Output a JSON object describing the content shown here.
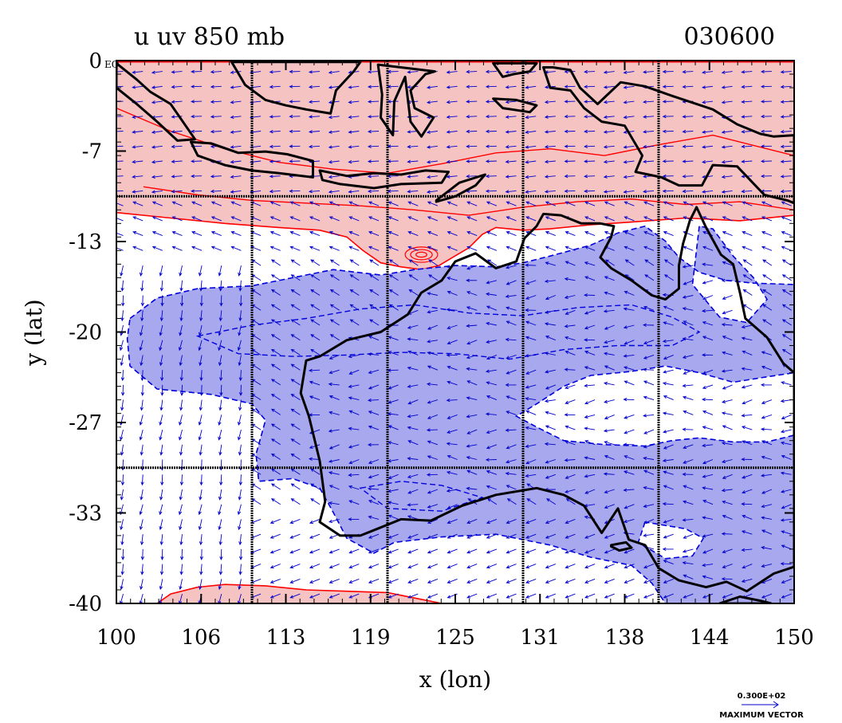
{
  "header": {
    "title_left": "u uv 850 mb",
    "title_right": "030600"
  },
  "chart_data": {
    "type": "contour_vector_map",
    "xlabel": "x (lon)",
    "ylabel": "y (lat)",
    "xlim": [
      100,
      150
    ],
    "ylim": [
      -40,
      0
    ],
    "x_ticks": [
      "100",
      "106",
      "113",
      "119",
      "125",
      "131",
      "138",
      "144",
      "150"
    ],
    "y_ticks": [
      "0",
      "-7",
      "-13",
      "-20",
      "-27",
      "-33",
      "-40"
    ],
    "y_tick_values": [
      0,
      -7,
      -13,
      -20,
      -27,
      -33,
      -40
    ],
    "x_tick_values": [
      100,
      106,
      113,
      119,
      125,
      131,
      138,
      144,
      150
    ],
    "y_top_suffix": "EQ",
    "grid_lon": [
      110,
      120,
      130,
      140
    ],
    "grid_lat": [
      -10,
      -30
    ],
    "grid": true,
    "positive_fill_color": "#f6c3c3",
    "positive_line_color": "#ff0000",
    "negative_fill_color": "#a8a8ee",
    "negative_line_color": "#0000dd",
    "coast_color": "#000000",
    "vector_color": "#0000cc",
    "positive_regions": [
      {
        "name": "north",
        "points": [
          [
            100,
            -0.1
          ],
          [
            150,
            -0.1
          ],
          [
            150,
            -11.4
          ],
          [
            146,
            -11.8
          ],
          [
            142,
            -11.6
          ],
          [
            138,
            -11.9
          ],
          [
            135,
            -12.1
          ],
          [
            132,
            -12.4
          ],
          [
            130,
            -12.5
          ],
          [
            128,
            -12.3
          ],
          [
            127,
            -12.8
          ],
          [
            126,
            -13.8
          ],
          [
            124.8,
            -14.5
          ],
          [
            123.8,
            -15.1
          ],
          [
            122.5,
            -15.4
          ],
          [
            121,
            -15.2
          ],
          [
            119.5,
            -14.9
          ],
          [
            118.2,
            -14.0
          ],
          [
            117,
            -13.0
          ],
          [
            115,
            -12.5
          ],
          [
            112,
            -12.3
          ],
          [
            108,
            -12.0
          ],
          [
            104,
            -11.6
          ],
          [
            100,
            -11.2
          ]
        ]
      },
      {
        "name": "south",
        "points": [
          [
            103,
            -40
          ],
          [
            104,
            -39.3
          ],
          [
            106,
            -38.8
          ],
          [
            108,
            -38.6
          ],
          [
            111,
            -38.7
          ],
          [
            114,
            -39.0
          ],
          [
            117,
            -39.1
          ],
          [
            120,
            -39.2
          ],
          [
            122,
            -39.6
          ],
          [
            124,
            -40
          ]
        ]
      }
    ],
    "negative_regions": [
      {
        "name": "main",
        "points": [
          [
            101,
            -19
          ],
          [
            103,
            -17.5
          ],
          [
            106,
            -16.8
          ],
          [
            110,
            -16.6
          ],
          [
            113,
            -16.0
          ],
          [
            116,
            -15.4
          ],
          [
            119.5,
            -15.8
          ],
          [
            122,
            -15.4
          ],
          [
            125,
            -15.1
          ],
          [
            128,
            -15.2
          ],
          [
            130,
            -14.9
          ],
          [
            132,
            -14.4
          ],
          [
            135,
            -13.6
          ],
          [
            137,
            -12.7
          ],
          [
            139,
            -12.2
          ],
          [
            140.5,
            -13.3
          ],
          [
            141.5,
            -14.5
          ],
          [
            143,
            -15.6
          ],
          [
            145,
            -16.2
          ],
          [
            147,
            -16.4
          ],
          [
            150,
            -16.5
          ],
          [
            150,
            -23.0
          ],
          [
            148,
            -23.3
          ],
          [
            145.5,
            -23.7
          ],
          [
            143,
            -23.0
          ],
          [
            140.5,
            -22.5
          ],
          [
            138,
            -22.9
          ],
          [
            135,
            -23.2
          ],
          [
            133,
            -24.0
          ],
          [
            131,
            -25.3
          ],
          [
            129.5,
            -26.2
          ],
          [
            131,
            -27.0
          ],
          [
            133,
            -28.0
          ],
          [
            136,
            -28.3
          ],
          [
            139,
            -28.4
          ],
          [
            141,
            -28.0
          ],
          [
            143,
            -27.8
          ],
          [
            145.5,
            -28.1
          ],
          [
            148,
            -28.1
          ],
          [
            150,
            -27.6
          ],
          [
            150,
            -40
          ],
          [
            140.5,
            -40
          ],
          [
            139.5,
            -38.5
          ],
          [
            138,
            -37.2
          ],
          [
            135,
            -36.6
          ],
          [
            132,
            -35.7
          ],
          [
            128,
            -34.9
          ],
          [
            124,
            -35.1
          ],
          [
            120.5,
            -35.5
          ],
          [
            119,
            -36.3
          ],
          [
            117,
            -35.2
          ],
          [
            116,
            -33.3
          ],
          [
            115,
            -31.5
          ],
          [
            113,
            -30.8
          ],
          [
            110.5,
            -31.0
          ],
          [
            110.3,
            -29.0
          ],
          [
            111,
            -26.5
          ],
          [
            110,
            -25.3
          ],
          [
            107,
            -24.6
          ],
          [
            103,
            -24.2
          ],
          [
            101,
            -22.5
          ],
          [
            100.8,
            -20.5
          ]
        ]
      }
    ],
    "negative_holes": [
      {
        "name": "east",
        "points": [
          [
            143,
            -12.2
          ],
          [
            142.5,
            -16.5
          ],
          [
            144.5,
            -18.9
          ],
          [
            146.5,
            -19.3
          ],
          [
            148,
            -17.6
          ],
          [
            147,
            -16.0
          ],
          [
            145.5,
            -14.4
          ],
          [
            144,
            -12.4
          ]
        ]
      },
      {
        "name": "south-central",
        "points": [
          [
            139,
            -34.0
          ],
          [
            138.5,
            -35.5
          ],
          [
            140.5,
            -36.7
          ],
          [
            142.5,
            -36.5
          ],
          [
            143.3,
            -35.2
          ],
          [
            142,
            -34.5
          ]
        ]
      }
    ],
    "coastlines": [
      {
        "name": "australia",
        "points": [
          [
            129.5,
            -14.8
          ],
          [
            128,
            -15.3
          ],
          [
            126.5,
            -14.2
          ],
          [
            125,
            -14.8
          ],
          [
            124,
            -16.2
          ],
          [
            122.5,
            -17.1
          ],
          [
            121.5,
            -18.7
          ],
          [
            119.5,
            -20.0
          ],
          [
            117,
            -20.6
          ],
          [
            115,
            -21.8
          ],
          [
            114,
            -22.1
          ],
          [
            113.6,
            -24.5
          ],
          [
            114.2,
            -26.2
          ],
          [
            115,
            -29.5
          ],
          [
            115.4,
            -32.5
          ],
          [
            115,
            -34.0
          ],
          [
            116.5,
            -35.0
          ],
          [
            118,
            -35.0
          ],
          [
            119.5,
            -34.4
          ],
          [
            121,
            -33.8
          ],
          [
            123.2,
            -33.9
          ],
          [
            125.5,
            -32.8
          ],
          [
            128,
            -32.0
          ],
          [
            131,
            -31.5
          ],
          [
            133,
            -32.0
          ],
          [
            134.5,
            -32.8
          ],
          [
            135.8,
            -34.8
          ],
          [
            137,
            -33.0
          ],
          [
            137.8,
            -35.3
          ],
          [
            139,
            -35.7
          ],
          [
            140,
            -37.4
          ],
          [
            141.5,
            -38.3
          ],
          [
            143.5,
            -38.8
          ],
          [
            145,
            -38.4
          ],
          [
            146.5,
            -39.1
          ],
          [
            148.5,
            -37.8
          ],
          [
            150,
            -37.3
          ],
          [
            150,
            -23.0
          ],
          [
            149.2,
            -22.3
          ],
          [
            148,
            -20.4
          ],
          [
            146.4,
            -19.0
          ],
          [
            146,
            -17.1
          ],
          [
            145.5,
            -15.0
          ],
          [
            144.6,
            -14.3
          ],
          [
            143.5,
            -12.3
          ],
          [
            142.8,
            -10.8
          ],
          [
            142.3,
            -11.8
          ],
          [
            141.8,
            -13.5
          ],
          [
            141.5,
            -15.1
          ],
          [
            141.5,
            -16.8
          ],
          [
            140.5,
            -17.6
          ],
          [
            139.5,
            -17.3
          ],
          [
            138,
            -16.2
          ],
          [
            136.5,
            -15.3
          ],
          [
            135.7,
            -14.5
          ],
          [
            136.5,
            -13.0
          ],
          [
            136.7,
            -12.2
          ],
          [
            135.7,
            -12.0
          ],
          [
            134.3,
            -12.0
          ],
          [
            132.8,
            -11.4
          ],
          [
            131.5,
            -11.3
          ],
          [
            131.0,
            -12.2
          ],
          [
            130.1,
            -13.1
          ],
          [
            129.5,
            -14.8
          ]
        ]
      },
      {
        "name": "sumatra",
        "points": [
          [
            100,
            -0.2
          ],
          [
            101.5,
            -1.4
          ],
          [
            102.5,
            -2.3
          ],
          [
            104,
            -3.2
          ],
          [
            105.8,
            -5.8
          ],
          [
            104.5,
            -5.9
          ],
          [
            103,
            -4.5
          ],
          [
            101.5,
            -3.2
          ],
          [
            100,
            -2.0
          ]
        ]
      },
      {
        "name": "java",
        "points": [
          [
            105.5,
            -6.0
          ],
          [
            107,
            -6.1
          ],
          [
            109,
            -6.8
          ],
          [
            111,
            -6.7
          ],
          [
            112.6,
            -6.9
          ],
          [
            114.5,
            -7.4
          ],
          [
            114.5,
            -8.6
          ],
          [
            112,
            -8.3
          ],
          [
            110,
            -8.1
          ],
          [
            108,
            -7.7
          ],
          [
            106,
            -7.0
          ]
        ]
      },
      {
        "name": "lesser-sunda",
        "points": [
          [
            115,
            -8.1
          ],
          [
            117,
            -8.5
          ],
          [
            119,
            -8.3
          ],
          [
            121,
            -8.4
          ],
          [
            122.8,
            -8.1
          ],
          [
            124.5,
            -8.2
          ],
          [
            124,
            -9.0
          ],
          [
            121,
            -9.1
          ],
          [
            119,
            -9.4
          ],
          [
            116.5,
            -9.1
          ],
          [
            115.2,
            -8.8
          ]
        ]
      },
      {
        "name": "timor",
        "points": [
          [
            123.6,
            -10.3
          ],
          [
            125.3,
            -9.0
          ],
          [
            127.2,
            -8.4
          ],
          [
            126.5,
            -9.2
          ],
          [
            125,
            -10.0
          ],
          [
            123.6,
            -10.4
          ]
        ]
      },
      {
        "name": "sulawesi",
        "points": [
          [
            119.3,
            -0.3
          ],
          [
            119.6,
            -2.5
          ],
          [
            119.5,
            -4.2
          ],
          [
            120.4,
            -5.5
          ],
          [
            120.5,
            -3.0
          ],
          [
            121.3,
            -1.2
          ],
          [
            121.7,
            -4.5
          ],
          [
            122.5,
            -5.6
          ],
          [
            123.4,
            -4.2
          ],
          [
            122.0,
            -3.5
          ],
          [
            121.7,
            -2.2
          ],
          [
            122.8,
            -1.0
          ],
          [
            123.5,
            -0.8
          ]
        ]
      },
      {
        "name": "borneo-south",
        "points": [
          [
            108.5,
            -0.1
          ],
          [
            109.5,
            -1.8
          ],
          [
            111,
            -2.9
          ],
          [
            112.5,
            -3.3
          ],
          [
            114,
            -3.6
          ],
          [
            115.8,
            -3.9
          ],
          [
            116.2,
            -2.2
          ],
          [
            117.5,
            -0.8
          ],
          [
            118,
            -0.1
          ]
        ]
      },
      {
        "name": "new-guinea",
        "points": [
          [
            131.5,
            -0.5
          ],
          [
            132,
            -2.0
          ],
          [
            133.5,
            -2.2
          ],
          [
            134.5,
            -3.5
          ],
          [
            135.8,
            -4.5
          ],
          [
            137.5,
            -4.8
          ],
          [
            138.8,
            -7.0
          ],
          [
            138.3,
            -8.2
          ],
          [
            140.2,
            -8.6
          ],
          [
            141.5,
            -9.2
          ],
          [
            143.2,
            -9.2
          ],
          [
            144,
            -7.7
          ],
          [
            145.8,
            -7.8
          ],
          [
            147.8,
            -9.9
          ],
          [
            149.5,
            -10.3
          ],
          [
            150,
            -10.5
          ],
          [
            150,
            -5.5
          ],
          [
            148.5,
            -5.6
          ],
          [
            147.5,
            -5.4
          ],
          [
            145.8,
            -4.7
          ],
          [
            144.0,
            -3.6
          ],
          [
            141,
            -2.6
          ],
          [
            139,
            -1.9
          ],
          [
            137.2,
            -1.6
          ],
          [
            135.5,
            -3.2
          ],
          [
            134.2,
            -2.0
          ],
          [
            133.5,
            -0.7
          ],
          [
            132.2,
            -0.5
          ]
        ]
      },
      {
        "name": "halmahera",
        "points": [
          [
            127.8,
            -0.2
          ],
          [
            128.5,
            -1.2
          ],
          [
            129.3,
            -1.0
          ],
          [
            130.5,
            -0.8
          ],
          [
            131.0,
            -0.2
          ]
        ]
      },
      {
        "name": "seram",
        "points": [
          [
            127.8,
            -2.8
          ],
          [
            129.5,
            -2.9
          ],
          [
            131,
            -3.3
          ],
          [
            130.5,
            -3.8
          ],
          [
            128.5,
            -3.5
          ]
        ]
      },
      {
        "name": "kangaroo-island",
        "points": [
          [
            136.5,
            -35.7
          ],
          [
            137.6,
            -35.5
          ],
          [
            138,
            -35.9
          ],
          [
            137.1,
            -36.1
          ],
          [
            136.5,
            -35.8
          ]
        ]
      },
      {
        "name": "tasmania-north",
        "points": [
          [
            144.5,
            -40
          ],
          [
            146,
            -39.5
          ],
          [
            147.5,
            -39.8
          ],
          [
            148.3,
            -40
          ]
        ]
      }
    ],
    "wind_vectors_description": "arrows on regular grid",
    "legend": {
      "value": "0.300E+02",
      "label": "MAXIMUM VECTOR"
    }
  }
}
